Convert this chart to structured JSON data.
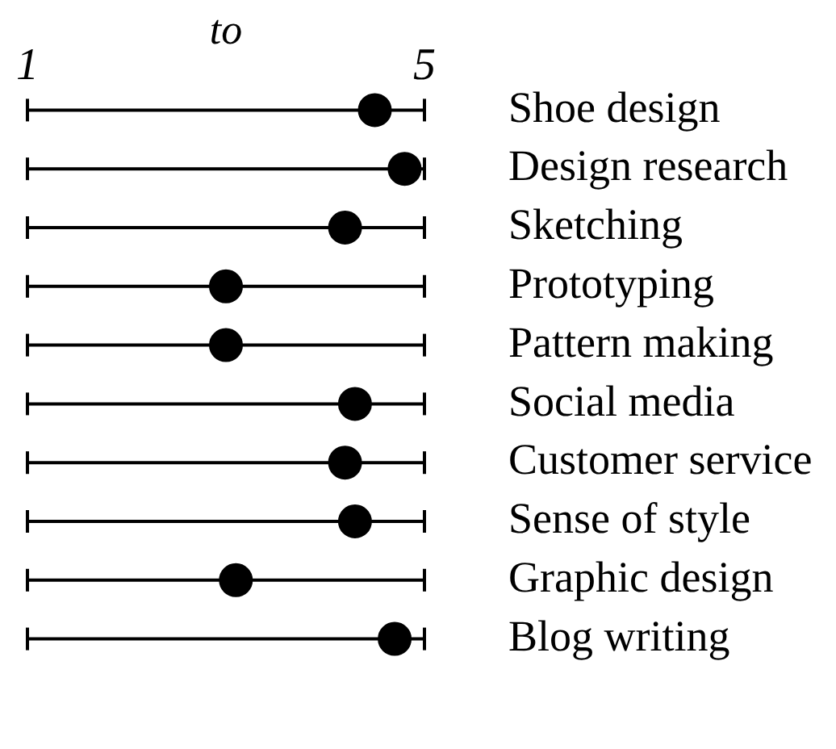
{
  "chart_data": {
    "type": "scatter",
    "orientation": "horizontal",
    "categories": [
      "Shoe design",
      "Design research",
      "Sketching",
      "Prototyping",
      "Pattern making",
      "Social media",
      "Customer service",
      "Sense of style",
      "Graphic design",
      "Blog writing"
    ],
    "values": [
      4.5,
      4.8,
      4.2,
      3.0,
      3.0,
      4.3,
      4.2,
      4.3,
      3.1,
      4.7
    ],
    "color": "#000000",
    "marker": "circle",
    "grid": "y",
    "xlim": [
      1,
      5
    ],
    "xticks": [
      1,
      5
    ],
    "annotations": [
      "to"
    ]
  }
}
